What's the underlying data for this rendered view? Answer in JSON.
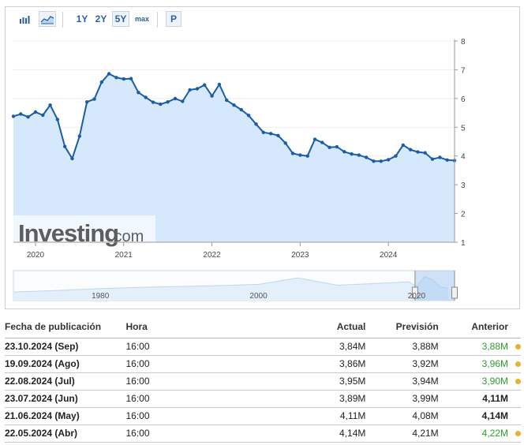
{
  "toolbar": {
    "chart_type_icons": [
      "bar-chart-icon",
      "area-chart-icon"
    ],
    "ranges": [
      {
        "label": "1Y",
        "active": false
      },
      {
        "label": "2Y",
        "active": false
      },
      {
        "label": "5Y",
        "active": true
      },
      {
        "label": "max",
        "active": false
      }
    ],
    "print_label": "P"
  },
  "watermark": {
    "brand": "Investing",
    "suffix": ".com"
  },
  "chart_data": {
    "type": "area",
    "x_ticks": [
      "2020",
      "2021",
      "2022",
      "2023",
      "2024"
    ],
    "y_ticks": [
      1,
      2,
      3,
      4,
      5,
      6,
      7,
      8
    ],
    "ylim": [
      1,
      8
    ],
    "xlim": [
      "2019-10",
      "2024-10"
    ],
    "series_color": "#1a5da6",
    "fill_color": "#d6e8fb",
    "x": [
      "2019-10",
      "2019-11",
      "2019-12",
      "2020-01",
      "2020-02",
      "2020-03",
      "2020-04",
      "2020-05",
      "2020-06",
      "2020-07",
      "2020-08",
      "2020-09",
      "2020-10",
      "2020-11",
      "2020-12",
      "2021-01",
      "2021-02",
      "2021-03",
      "2021-04",
      "2021-05",
      "2021-06",
      "2021-07",
      "2021-08",
      "2021-09",
      "2021-10",
      "2021-11",
      "2021-12",
      "2022-01",
      "2022-02",
      "2022-03",
      "2022-04",
      "2022-05",
      "2022-06",
      "2022-07",
      "2022-08",
      "2022-09",
      "2022-10",
      "2022-11",
      "2022-12",
      "2023-01",
      "2023-02",
      "2023-03",
      "2023-04",
      "2023-05",
      "2023-06",
      "2023-07",
      "2023-08",
      "2023-09",
      "2023-10",
      "2023-11",
      "2023-12",
      "2024-01",
      "2024-02",
      "2024-03",
      "2024-04",
      "2024-05",
      "2024-06",
      "2024-07",
      "2024-08",
      "2024-09",
      "2024-10"
    ],
    "y": [
      5.38,
      5.46,
      5.36,
      5.53,
      5.42,
      5.77,
      5.27,
      4.33,
      3.91,
      4.69,
      5.88,
      5.98,
      6.57,
      6.86,
      6.73,
      6.68,
      6.69,
      6.21,
      6.04,
      5.87,
      5.8,
      5.88,
      6.0,
      5.9,
      6.3,
      6.34,
      6.47,
      6.09,
      6.49,
      5.94,
      5.77,
      5.61,
      5.41,
      5.11,
      4.82,
      4.78,
      4.71,
      4.45,
      4.09,
      4.03,
      4.0,
      4.58,
      4.47,
      4.3,
      4.32,
      4.15,
      4.07,
      4.03,
      3.95,
      3.82,
      3.82,
      3.87,
      4.0,
      4.38,
      4.22,
      4.14,
      4.11,
      3.89,
      3.95,
      3.86,
      3.84
    ]
  },
  "navigator": {
    "labels": [
      "1980",
      "2000",
      "2020"
    ],
    "x_years": [
      1969,
      1975,
      1980,
      1985,
      1990,
      1995,
      2000,
      2005,
      2010,
      2015,
      2019,
      2020,
      2021,
      2022,
      2023,
      2024
    ],
    "y": [
      3.0,
      3.4,
      3.8,
      4.1,
      4.3,
      4.5,
      4.8,
      6.3,
      4.6,
      5.0,
      5.4,
      4.2,
      6.6,
      5.9,
      4.2,
      3.9
    ]
  },
  "table": {
    "headers": {
      "date": "Fecha de publicación",
      "hora": "Hora",
      "actual": "Actual",
      "prevision": "Previsión",
      "anterior": "Anterior"
    },
    "rows": [
      {
        "date": "23.10.2024 (Sep)",
        "hora": "16:00",
        "actual": "3,84M",
        "actual_status": "neg",
        "prevision": "3,88M",
        "anterior": "3,88M",
        "anterior_status": "pos",
        "revised": true
      },
      {
        "date": "19.09.2024 (Ago)",
        "hora": "16:00",
        "actual": "3,86M",
        "actual_status": "neg",
        "prevision": "3,92M",
        "anterior": "3,96M",
        "anterior_status": "pos",
        "revised": true
      },
      {
        "date": "22.08.2024 (Jul)",
        "hora": "16:00",
        "actual": "3,95M",
        "actual_status": "pos",
        "prevision": "3,94M",
        "anterior": "3,90M",
        "anterior_status": "pos",
        "revised": true
      },
      {
        "date": "23.07.2024 (Jun)",
        "hora": "16:00",
        "actual": "3,89M",
        "actual_status": "neg",
        "prevision": "3,99M",
        "anterior": "4,11M",
        "anterior_status": "neu",
        "revised": false
      },
      {
        "date": "21.06.2024 (May)",
        "hora": "16:00",
        "actual": "4,11M",
        "actual_status": "pos",
        "prevision": "4,08M",
        "anterior": "4,14M",
        "anterior_status": "neu",
        "revised": false
      },
      {
        "date": "22.05.2024 (Abr)",
        "hora": "16:00",
        "actual": "4,14M",
        "actual_status": "neg",
        "prevision": "4,21M",
        "anterior": "4,22M",
        "anterior_status": "pos",
        "revised": true
      }
    ]
  }
}
